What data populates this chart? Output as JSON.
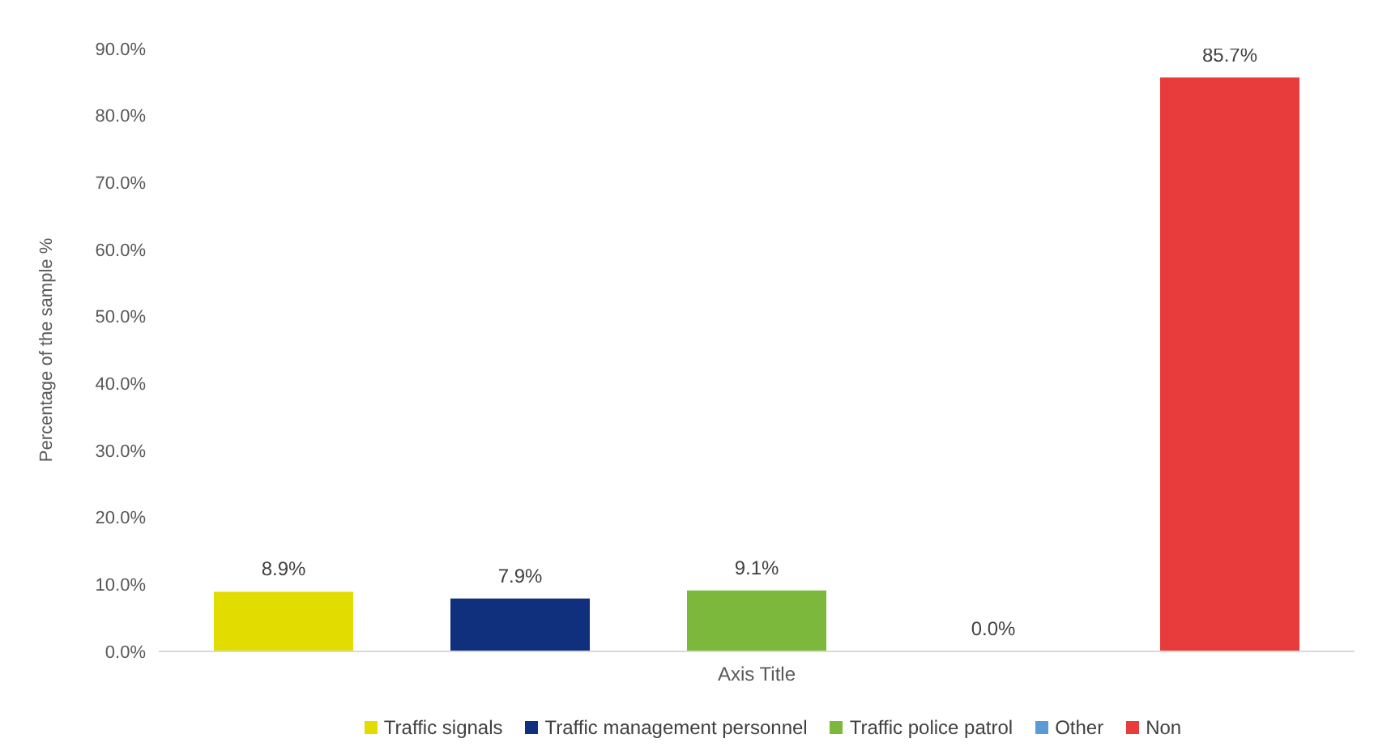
{
  "chart_data": {
    "type": "bar",
    "xlabel": "Axis Title",
    "ylabel": "Percentage of the sample %",
    "categories": [
      null
    ],
    "series": [
      {
        "name": "Traffic signals",
        "color": "#e2dc00",
        "values": [
          8.9
        ],
        "value_labels": [
          "8.9%"
        ]
      },
      {
        "name": "Traffic management personnel",
        "color": "#10307e",
        "values": [
          7.9
        ],
        "value_labels": [
          "7.9%"
        ]
      },
      {
        "name": "Traffic police patrol",
        "color": "#7cb83c",
        "values": [
          9.1
        ],
        "value_labels": [
          "9.1%"
        ]
      },
      {
        "name": "Other",
        "color": "#5b9bd5",
        "values": [
          0
        ],
        "value_labels": [
          "0.0%"
        ]
      },
      {
        "name": "Non",
        "color": "#e83c3c",
        "values": [
          85.7
        ],
        "value_labels": [
          "85.7%"
        ]
      }
    ],
    "ylim": [
      0,
      90
    ],
    "yticks": [
      {
        "value": 0,
        "label": "0.0%"
      },
      {
        "value": 10,
        "label": "10.0%"
      },
      {
        "value": 20,
        "label": "20.0%"
      },
      {
        "value": 30,
        "label": "30.0%"
      },
      {
        "value": 40,
        "label": "40.0%"
      },
      {
        "value": 50,
        "label": "50.0%"
      },
      {
        "value": 60,
        "label": "60.0%"
      },
      {
        "value": 70,
        "label": "70.0%"
      },
      {
        "value": 80,
        "label": "80.0%"
      },
      {
        "value": 90,
        "label": "90.0%"
      }
    ],
    "grid": false,
    "legend": "bottom"
  }
}
